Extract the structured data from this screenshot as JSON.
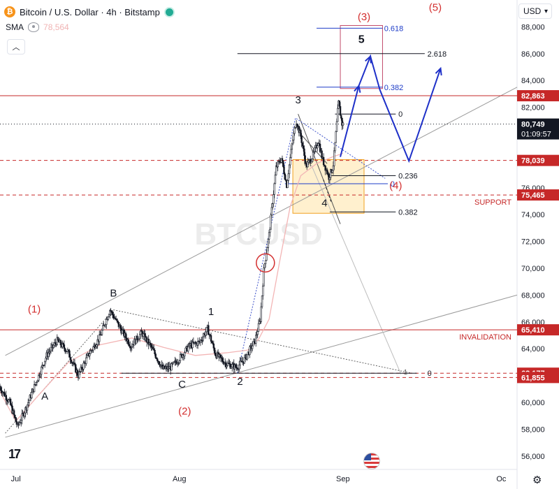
{
  "header": {
    "title": "Bitcoin / U.S. Dollar · 4h · Bitstamp",
    "btc_symbol": "₿",
    "indicator_name": "SMA",
    "indicator_value": "78,564",
    "currency": "USD"
  },
  "watermark": "BTCUSD",
  "chart_data": {
    "type": "candlestick",
    "title": "Bitcoin / U.S. Dollar · 4h · Bitstamp",
    "xlabel": "",
    "ylabel": "",
    "ylim": [
      55000,
      90000
    ],
    "x_ticks": [
      "Jul",
      "Aug",
      "Sep",
      "Oc"
    ],
    "x_tick_days": [
      0,
      31,
      62,
      92
    ],
    "xlim_days": [
      -3,
      95
    ],
    "y_ticks": [
      56000,
      58000,
      60000,
      62000,
      64000,
      66000,
      68000,
      70000,
      72000,
      74000,
      76000,
      78000,
      80000,
      82000,
      84000,
      86000,
      88000
    ],
    "price_path": [
      [
        -3,
        61200
      ],
      [
        -1,
        60000
      ],
      [
        0.5,
        58200
      ],
      [
        2,
        59500
      ],
      [
        4,
        61500
      ],
      [
        6,
        63500
      ],
      [
        8,
        64600
      ],
      [
        10,
        63800
      ],
      [
        12,
        62000
      ],
      [
        14,
        63600
      ],
      [
        16,
        64800
      ],
      [
        18,
        66900
      ],
      [
        20,
        65500
      ],
      [
        22,
        64200
      ],
      [
        24,
        65200
      ],
      [
        26,
        64000
      ],
      [
        28,
        62500
      ],
      [
        29.5,
        62600
      ],
      [
        31,
        63200
      ],
      [
        33,
        64200
      ],
      [
        35,
        64500
      ],
      [
        36.5,
        65500
      ],
      [
        38,
        63600
      ],
      [
        40,
        62900
      ],
      [
        42,
        62600
      ],
      [
        43.5,
        63200
      ],
      [
        45.5,
        64600
      ],
      [
        46.5,
        66200
      ],
      [
        47.2,
        70000
      ],
      [
        48.2,
        72600
      ],
      [
        49.5,
        77500
      ],
      [
        50.5,
        78200
      ],
      [
        51.5,
        76200
      ],
      [
        52.5,
        79200
      ],
      [
        53.3,
        81000
      ],
      [
        54.2,
        79800
      ],
      [
        55.2,
        77600
      ],
      [
        56.5,
        78400
      ],
      [
        57.5,
        79500
      ],
      [
        58.3,
        78100
      ],
      [
        59.5,
        76800
      ],
      [
        60.3,
        77600
      ],
      [
        61.0,
        80800
      ],
      [
        61.3,
        82400
      ],
      [
        62.0,
        80749
      ]
    ],
    "sma_path": [
      [
        -3,
        60800
      ],
      [
        0,
        58600
      ],
      [
        4,
        60400
      ],
      [
        10,
        63000
      ],
      [
        16,
        64300
      ],
      [
        22,
        64800
      ],
      [
        28,
        64100
      ],
      [
        34,
        63500
      ],
      [
        40,
        63700
      ],
      [
        44,
        63900
      ],
      [
        46,
        64700
      ],
      [
        48,
        66200
      ],
      [
        50,
        70500
      ],
      [
        52,
        74600
      ],
      [
        54,
        76900
      ],
      [
        57,
        77800
      ],
      [
        60,
        78300
      ],
      [
        62,
        78564
      ]
    ],
    "horizontal_levels": [
      {
        "price": 82863,
        "label": "82,863",
        "color": "#c62828",
        "style": "solid"
      },
      {
        "price": 78039,
        "label": "78,039",
        "color": "#c62828",
        "style": "dashed"
      },
      {
        "price": 75465,
        "label": "75,465",
        "color": "#c62828",
        "style": "dashed"
      },
      {
        "price": 65410,
        "label": "65,410",
        "color": "#c62828",
        "style": "solid"
      },
      {
        "price": 62177,
        "label": "62,177",
        "color": "#c62828",
        "style": "dashed"
      },
      {
        "price": 61855,
        "label": "61,855",
        "color": "#c62828",
        "style": "dashed"
      }
    ],
    "current_price": {
      "price": 80749,
      "label": "80,749",
      "countdown": "01:09:57"
    },
    "level_notes": [
      {
        "text": "SUPPORT",
        "price": 75465
      },
      {
        "text": "INVALIDATION",
        "price": 65410
      }
    ],
    "fib_extension": [
      {
        "label": "0.618",
        "price": 87900,
        "color": "#1e3cc8"
      },
      {
        "label": "2.618",
        "price": 86000,
        "color": "#131722"
      },
      {
        "label": "0.382",
        "price": 83500,
        "color": "#1e3cc8"
      },
      {
        "label": "0",
        "price": 81500,
        "color": "#131722"
      }
    ],
    "fib_retracement": [
      {
        "label": "0.236",
        "price": 76900,
        "color": "#131722"
      },
      {
        "label": "0",
        "price": 76300,
        "color": "#1e3cc8"
      },
      {
        "label": "0.382",
        "price": 74200,
        "color": "#131722"
      }
    ],
    "bottom_fib": [
      {
        "label": "1",
        "price": 62177
      },
      {
        "label": "0",
        "price": 62177
      }
    ],
    "wave_labels_black": [
      {
        "text": "A",
        "day": 5.5,
        "price": 60200
      },
      {
        "text": "B",
        "day": 18.5,
        "price": 67900
      },
      {
        "text": "C",
        "day": 31.5,
        "price": 61100
      },
      {
        "text": "1",
        "day": 37,
        "price": 66500
      },
      {
        "text": "2",
        "day": 42.5,
        "price": 61300
      },
      {
        "text": "3",
        "day": 53.5,
        "price": 82300
      },
      {
        "text": "4",
        "day": 58.5,
        "price": 74600
      },
      {
        "text": "5",
        "day": 65.5,
        "price": 86800
      }
    ],
    "wave_labels_red": [
      {
        "text": "(1)",
        "day": 3.5,
        "price": 66700
      },
      {
        "text": "(2)",
        "day": 32,
        "price": 59100
      },
      {
        "text": "(3)",
        "day": 66,
        "price": 88500
      },
      {
        "text": "(4)",
        "day": 72,
        "price": 75900
      },
      {
        "text": "(5)",
        "day": 79.5,
        "price": 89200
      }
    ],
    "projection_path": [
      [
        61.5,
        78300
      ],
      [
        65,
        83600
      ],
      [
        67.2,
        85800
      ],
      [
        69,
        83300
      ],
      [
        74.5,
        78000
      ],
      [
        80.5,
        84900
      ]
    ],
    "target_box": {
      "day_from": 61.5,
      "day_to": 69.5,
      "price_from": 83400,
      "price_to": 88100
    },
    "support_box": {
      "day_from": 52.5,
      "day_to": 66,
      "price_from": 74100,
      "price_to": 78100
    }
  }
}
